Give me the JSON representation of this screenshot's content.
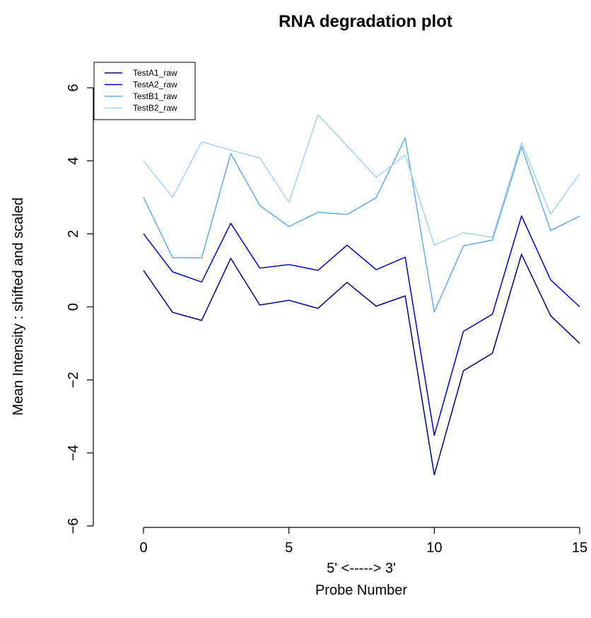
{
  "chart_data": {
    "type": "line",
    "title": "RNA degradation plot",
    "xlabel": "Probe Number",
    "xlabel_sub": "5' <-----> 3'",
    "ylabel": "Mean Intensity : shifted and scaled",
    "xlim": [
      0,
      15
    ],
    "ylim": [
      -6,
      6
    ],
    "x_ticks": [
      0,
      5,
      10,
      15
    ],
    "y_ticks": [
      -6,
      -4,
      -2,
      0,
      2,
      4,
      6
    ],
    "grid": false,
    "legend_position": "top-left",
    "x": [
      0,
      1,
      2,
      3,
      4,
      5,
      6,
      7,
      8,
      9,
      10,
      11,
      12,
      13,
      14,
      15
    ],
    "series": [
      {
        "name": "TestA1_raw",
        "color": "#000080",
        "values": [
          1.0,
          -0.15,
          -0.37,
          1.33,
          0.05,
          0.18,
          -0.04,
          0.67,
          0.02,
          0.3,
          -4.6,
          -1.75,
          -1.27,
          1.44,
          -0.24,
          -1.0
        ]
      },
      {
        "name": "TestA2_raw",
        "color": "#0000CD",
        "values": [
          2.0,
          0.96,
          0.68,
          2.29,
          1.06,
          1.16,
          1.0,
          1.69,
          1.02,
          1.36,
          -3.52,
          -0.67,
          -0.2,
          2.49,
          0.74,
          0.0
        ]
      },
      {
        "name": "TestB1_raw",
        "color": "#5CACEE",
        "values": [
          3.0,
          1.35,
          1.34,
          4.2,
          2.78,
          2.2,
          2.59,
          2.53,
          2.99,
          4.63,
          -0.14,
          1.67,
          1.83,
          4.39,
          2.09,
          2.49
        ]
      },
      {
        "name": "TestB2_raw",
        "color": "#A4D3EE",
        "values": [
          4.0,
          3.0,
          4.52,
          4.29,
          4.08,
          2.86,
          5.26,
          4.41,
          3.55,
          4.15,
          1.69,
          2.03,
          1.91,
          4.5,
          2.54,
          3.64
        ]
      }
    ]
  }
}
